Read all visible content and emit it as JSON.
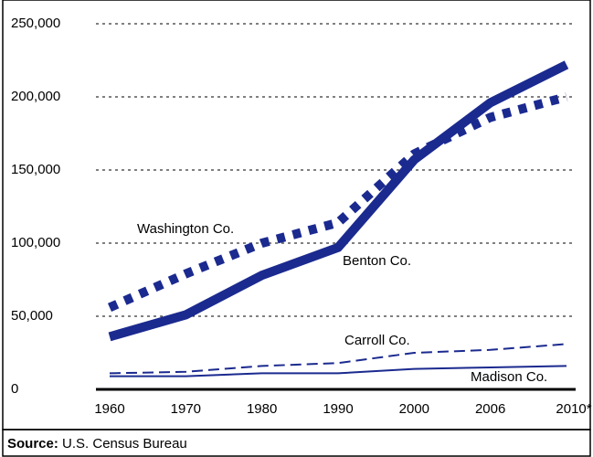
{
  "chart_data": {
    "type": "line",
    "categories": [
      "1960",
      "1970",
      "1980",
      "1990",
      "2000",
      "2006",
      "2010*"
    ],
    "series": [
      {
        "name": "Benton Co.",
        "color": "#1b2a8f",
        "style": "solid",
        "width": "thick",
        "values": [
          36000,
          51000,
          78000,
          97000,
          157000,
          196000,
          222000
        ]
      },
      {
        "name": "Washington Co.",
        "color": "#1b2a8f",
        "style": "dotted",
        "width": "thick",
        "values": [
          56000,
          79000,
          100000,
          114000,
          161000,
          186000,
          200000
        ]
      },
      {
        "name": "Carroll Co.",
        "color": "#1b2a8f",
        "style": "dashed",
        "width": "thin",
        "values": [
          11000,
          12000,
          16000,
          18000,
          25000,
          27000,
          31000
        ]
      },
      {
        "name": "Madison Co.",
        "color": "#1b2a8f",
        "style": "solid",
        "width": "thin",
        "values": [
          9000,
          9000,
          11000,
          11000,
          14000,
          15000,
          16000
        ]
      }
    ],
    "ylim": [
      0,
      250000
    ],
    "yticks": [
      0,
      {
        "value": 50000,
        "label": "50,000"
      },
      {
        "value": 100000,
        "label": "100,000"
      },
      {
        "value": 150000,
        "label": "150,000"
      },
      {
        "value": 200000,
        "label": "200,000"
      },
      {
        "value": 250000,
        "label": "250,000"
      }
    ],
    "grid": true,
    "source_label": "Source:",
    "source": "U.S. Census Bureau"
  }
}
